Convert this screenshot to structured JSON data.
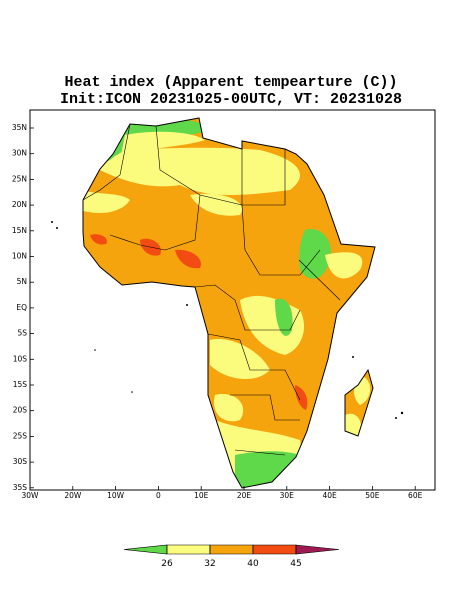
{
  "title": "Heat index (Apparent tempearture (C))",
  "subtitle": "Init:ICON 20231025-00UTC, VT: 20231028",
  "map": {
    "lat_labels": [
      "35N",
      "30N",
      "25N",
      "20N",
      "15N",
      "10N",
      "5N",
      "EQ",
      "5S",
      "10S",
      "15S",
      "20S",
      "25S",
      "30S",
      "35S"
    ],
    "lon_labels": [
      "30W",
      "20W",
      "10W",
      "0",
      "10E",
      "20E",
      "30E",
      "40E",
      "50E",
      "60E"
    ]
  },
  "colorbar": {
    "ticks": [
      26,
      32,
      40,
      45
    ],
    "colors": [
      "#5fd84a",
      "#fbfb7e",
      "#f6a40e",
      "#f24c12",
      "#9e1a52"
    ]
  }
}
